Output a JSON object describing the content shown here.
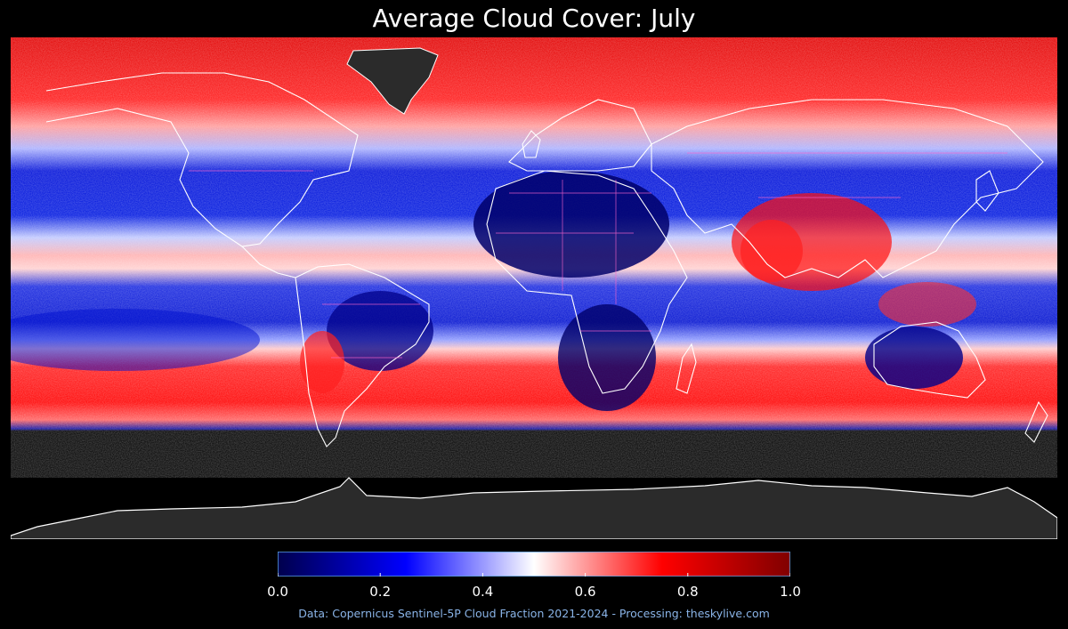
{
  "title": "Average Cloud Cover: July",
  "credit": "Data: Copernicus Sentinel-5P Cloud Fraction 2021-2024 - Processing: theskylive.com",
  "colorbar": {
    "min": 0.0,
    "max": 1.0,
    "tick_labels": [
      "0.0",
      "0.2",
      "0.4",
      "0.6",
      "0.8",
      "1.0"
    ],
    "tick_values": [
      0.0,
      0.2,
      0.4,
      0.6,
      0.8,
      1.0
    ],
    "colors": {
      "low": "#00004c",
      "mid_low": "#0000ff",
      "mid": "#ffffff",
      "mid_high": "#ff0000",
      "high": "#800000"
    }
  },
  "colors": {
    "background": "#000000",
    "land_masked": "#2b2b2b",
    "coastline": "#ffffff",
    "borders": "#ff66cc"
  }
}
